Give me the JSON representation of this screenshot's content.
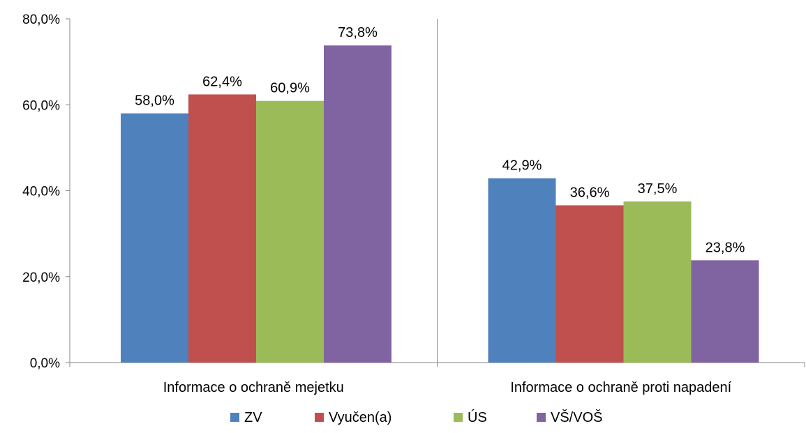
{
  "chart_data": {
    "type": "bar",
    "categories": [
      "Informace o ochraně mejetku",
      "Informace o ochraně proti napadení"
    ],
    "series": [
      {
        "name": "ZV",
        "values": [
          58.0,
          42.9
        ],
        "labels": [
          "58,0%",
          "42,9%"
        ],
        "color": "#4F81BD"
      },
      {
        "name": "Vyučen(a)",
        "values": [
          62.4,
          36.6
        ],
        "labels": [
          "62,4%",
          "36,6%"
        ],
        "color": "#C0504D"
      },
      {
        "name": "ÚS",
        "values": [
          60.9,
          37.5
        ],
        "labels": [
          "60,9%",
          "37,5%"
        ],
        "color": "#9BBB59"
      },
      {
        "name": "VŠ/VOŠ",
        "values": [
          73.8,
          23.8
        ],
        "labels": [
          "73,8%",
          "23,8%"
        ],
        "color": "#8064A2"
      }
    ],
    "yticks": [
      0,
      20,
      40,
      60,
      80
    ],
    "ytick_labels": [
      "0,0%",
      "20,0%",
      "40,0%",
      "60,0%",
      "80,0%"
    ],
    "ylim": [
      0,
      80
    ],
    "grid": false,
    "legend": "bottom",
    "axis_color": "#868686"
  }
}
